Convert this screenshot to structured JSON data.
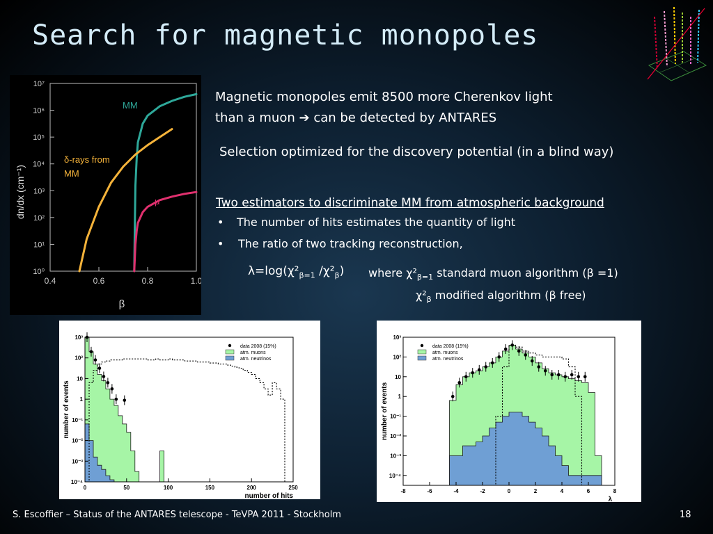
{
  "slide": {
    "title": "Search for magnetic monopoles",
    "footer": "S. Escoffier – Status of the ANTARES telescope - TeVPA 2011 - Stockholm",
    "page_number": "18"
  },
  "text": {
    "line1": "Magnetic monopoles emit 8500 more Cherenkov light",
    "line2a": "than a muon",
    "arrow": "➔",
    "line2b": "can be detected by ANTARES",
    "selection": "Selection optimized for the discovery potential (in a blind way)",
    "estimators_heading": "Two estimators to discriminate MM from atmospheric background",
    "bullet_symbol": "•",
    "bullet1": "The number of hits estimates the quantity of light",
    "bullet2": "The ratio of two tracking reconstruction,",
    "formula": "λ=log(χ²β=1 /χ²β)",
    "where_line1": "where χ²β=1 standard muon algorithm (β =1)",
    "where_line2": "χ²β modified algorithm (β free)"
  },
  "chart_data": [
    {
      "type": "line",
      "xlabel": "β",
      "ylabel": "dn/dx (cm⁻¹)",
      "xlim": [
        0.4,
        1.0
      ],
      "ylim_log10": [
        0,
        7
      ],
      "log_y": true,
      "x_ticks": [
        "0.4",
        "0.6",
        "0.8",
        "1.0"
      ],
      "y_ticks": [
        "10⁰",
        "10¹",
        "10²",
        "10³",
        "10⁴",
        "10⁵",
        "10⁶",
        "10⁷"
      ],
      "colors": {
        "MM": "#2ea89a",
        "delta": "#f5b33a",
        "mu": "#e0306e"
      },
      "series": [
        {
          "name": "MM",
          "label": "MM",
          "points": [
            [
              0.745,
              0
            ],
            [
              0.748,
              2
            ],
            [
              0.75,
              3.2
            ],
            [
              0.755,
              4.2
            ],
            [
              0.76,
              4.8
            ],
            [
              0.78,
              5.5
            ],
            [
              0.8,
              5.8
            ],
            [
              0.85,
              6.15
            ],
            [
              0.9,
              6.35
            ],
            [
              0.95,
              6.5
            ],
            [
              1.0,
              6.6
            ]
          ]
        },
        {
          "name": "δ-rays from MM",
          "label": "δ-rays from MM",
          "points": [
            [
              0.52,
              0
            ],
            [
              0.55,
              1.2
            ],
            [
              0.6,
              2.4
            ],
            [
              0.65,
              3.3
            ],
            [
              0.7,
              3.9
            ],
            [
              0.75,
              4.35
            ],
            [
              0.8,
              4.7
            ],
            [
              0.85,
              5.0
            ],
            [
              0.9,
              5.3
            ]
          ]
        },
        {
          "name": "μ",
          "label": "μ",
          "points": [
            [
              0.745,
              0
            ],
            [
              0.75,
              1.0
            ],
            [
              0.755,
              1.5
            ],
            [
              0.76,
              1.8
            ],
            [
              0.78,
              2.2
            ],
            [
              0.8,
              2.4
            ],
            [
              0.85,
              2.65
            ],
            [
              0.9,
              2.78
            ],
            [
              0.95,
              2.88
            ],
            [
              1.0,
              2.95
            ]
          ]
        }
      ]
    },
    {
      "type": "histogram",
      "xlabel": "number of hits",
      "ylabel": "number of events",
      "xlim": [
        0,
        250
      ],
      "ylim_log10": [
        -4,
        3
      ],
      "log_y": true,
      "x_ticks": [
        "0",
        "50",
        "100",
        "150",
        "200",
        "250"
      ],
      "y_ticks": [
        "10⁻⁴",
        "10⁻³",
        "10⁻²",
        "10⁻¹",
        "1",
        "10",
        "10²",
        "10³"
      ],
      "legend": [
        "data 2008 (15%)",
        "atm. muons",
        "atm. neutrinos"
      ],
      "colors": {
        "muons": "#a6f5a6",
        "neutrinos": "#6f9fd4",
        "data": "#000000"
      },
      "bin_edges": [
        0,
        5,
        10,
        15,
        20,
        25,
        30,
        35,
        40,
        45,
        50,
        55,
        60,
        65,
        70,
        75,
        80,
        85,
        90,
        95,
        100,
        105,
        110,
        115,
        120,
        125,
        130,
        135,
        140,
        145,
        150,
        155,
        160,
        165,
        170,
        175,
        180,
        185,
        190,
        195,
        200,
        205,
        210,
        215,
        220,
        225,
        230,
        235,
        240,
        245,
        250
      ],
      "series": [
        {
          "name": "atm. muons",
          "log10_values": [
            3,
            2.3,
            1.7,
            1.2,
            0.9,
            0.5,
            0,
            -0.3,
            -0.8,
            -1.2,
            -1.6,
            -2.5,
            -3.5,
            -4,
            -4,
            -4,
            -4,
            -4,
            -2.5,
            -4,
            -4,
            -4,
            -4,
            -4,
            -4,
            -4,
            -4,
            -4,
            -4,
            -4,
            -4,
            -4,
            -4,
            -4,
            -4,
            -4,
            -4,
            -4,
            -4,
            -4,
            -4,
            -4,
            -4,
            -4,
            -4,
            -4,
            -4,
            -4,
            -4,
            -4
          ]
        },
        {
          "name": "atm. neutrinos",
          "log10_values": [
            -1.2,
            -2,
            -2.8,
            -3.2,
            -3.4,
            -3.7,
            -3.9,
            -4,
            -4,
            -4,
            -4,
            -4,
            -4,
            -4,
            -4,
            -4,
            -4,
            -4,
            -4,
            -4,
            -4,
            -4,
            -4,
            -4,
            -4,
            -4,
            -4,
            -4,
            -4,
            -4,
            -4,
            -4,
            -4,
            -4,
            -4,
            -4,
            -4,
            -4,
            -4,
            -4,
            -4,
            -4,
            -4,
            -4,
            -4,
            -4,
            -4,
            -4,
            -4,
            -4
          ]
        },
        {
          "name": "signal (dotted)",
          "log10_values": [
            -4,
            0.8,
            1.4,
            1.7,
            1.8,
            1.85,
            1.9,
            1.9,
            1.9,
            1.95,
            1.95,
            1.95,
            1.95,
            1.95,
            1.95,
            1.9,
            1.9,
            1.95,
            1.9,
            1.9,
            1.95,
            1.9,
            1.9,
            1.9,
            1.85,
            1.85,
            1.85,
            1.8,
            1.8,
            1.8,
            1.75,
            1.75,
            1.7,
            1.7,
            1.65,
            1.6,
            1.55,
            1.5,
            1.4,
            1.3,
            1.2,
            1.0,
            0.8,
            0.5,
            0.2,
            0.8,
            0.5,
            0,
            -4,
            -4
          ]
        },
        {
          "name": "data 2008 (15%)",
          "points": [
            [
              2.5,
              3
            ],
            [
              7.5,
              2.3
            ],
            [
              12.5,
              1.9
            ],
            [
              17.5,
              1.5
            ],
            [
              22.5,
              1.1
            ],
            [
              27.5,
              0.8
            ],
            [
              32.5,
              0.5
            ],
            [
              37.5,
              0
            ],
            [
              47.5,
              -0.05
            ]
          ]
        }
      ]
    },
    {
      "type": "histogram",
      "xlabel": "λ",
      "ylabel": "number of events",
      "xlim": [
        -8,
        8
      ],
      "ylim_log10": [
        -4.5,
        3
      ],
      "log_y": true,
      "x_ticks": [
        "-8",
        "-6",
        "-4",
        "-2",
        "0",
        "2",
        "4",
        "6",
        "8"
      ],
      "y_ticks": [
        "10⁻⁴",
        "10⁻³",
        "10⁻²",
        "10⁻¹",
        "1",
        "10",
        "10²",
        "10³"
      ],
      "legend": [
        "data 2008 (15%)",
        "atm. muons",
        "atm. neutrinos"
      ],
      "colors": {
        "muons": "#a6f5a6",
        "neutrinos": "#6f9fd4",
        "data": "#000000"
      },
      "bin_edges": [
        -4.5,
        -4,
        -3.5,
        -3,
        -2.5,
        -2,
        -1.5,
        -1,
        -0.5,
        0,
        0.5,
        1,
        1.5,
        2,
        2.5,
        3,
        3.5,
        4,
        4.5,
        5,
        5.5,
        6,
        6.5,
        7
      ],
      "series": [
        {
          "name": "atm. muons",
          "log10_values": [
            -0.2,
            0.6,
            1.0,
            1.2,
            1.3,
            1.5,
            1.7,
            2.0,
            2.3,
            2.6,
            2.4,
            2.2,
            2.0,
            1.7,
            1.4,
            1.2,
            1.1,
            1.0,
            0.9,
            0.8,
            0.7,
            0.2,
            -3
          ]
        },
        {
          "name": "atm. neutrinos",
          "log10_values": [
            -3,
            -3,
            -2.5,
            -2.5,
            -2.3,
            -2,
            -1.6,
            -1.3,
            -1.0,
            -0.8,
            -0.8,
            -1.0,
            -1.3,
            -1.6,
            -2,
            -2.5,
            -3,
            -3.5,
            -4,
            -4,
            -4,
            -4,
            -4
          ]
        },
        {
          "name": "signal (dotted)",
          "log10_values": [
            -4.5,
            -4.5,
            -4.5,
            -4.5,
            -4.5,
            -4.5,
            -4.5,
            -1,
            1.5,
            2.6,
            2.5,
            2.3,
            2.2,
            2.1,
            2.0,
            2.0,
            2.0,
            1.9,
            1.5,
            0,
            -4.5,
            -4.5,
            -4.5
          ]
        },
        {
          "name": "data 2008 (15%)",
          "points": [
            [
              -4.25,
              0
            ],
            [
              -3.75,
              0.7
            ],
            [
              -3.25,
              1.0
            ],
            [
              -2.75,
              1.2
            ],
            [
              -2.25,
              1.35
            ],
            [
              -1.75,
              1.5
            ],
            [
              -1.25,
              1.7
            ],
            [
              -0.75,
              2.0
            ],
            [
              -0.25,
              2.4
            ],
            [
              0.25,
              2.6
            ],
            [
              0.75,
              2.3
            ],
            [
              1.25,
              2.1
            ],
            [
              1.75,
              1.8
            ],
            [
              2.25,
              1.5
            ],
            [
              2.75,
              1.3
            ],
            [
              3.25,
              1.1
            ],
            [
              3.75,
              1.1
            ],
            [
              4.25,
              1.0
            ],
            [
              4.75,
              1.1
            ],
            [
              5.25,
              1.0
            ],
            [
              5.75,
              1.0
            ]
          ]
        }
      ]
    }
  ]
}
